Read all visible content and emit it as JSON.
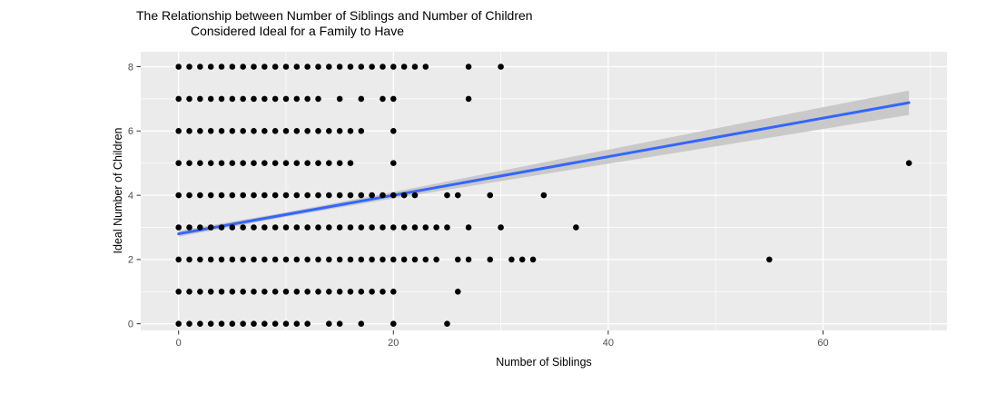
{
  "title": {
    "line1": "The Relationship between Number of Siblings and Number of Children",
    "line2": "Considered Ideal for a Family to Have"
  },
  "chart_data": {
    "type": "scatter",
    "xlabel": "Number of Siblings",
    "ylabel": "Ideal Number of Children",
    "x_ticks": [
      0,
      20,
      40,
      60
    ],
    "y_ticks": [
      0,
      2,
      4,
      6,
      8
    ],
    "x_minor_gridlines": [
      10,
      30,
      50,
      70
    ],
    "y_minor_gridlines": [
      1,
      3,
      5,
      7
    ],
    "xlim": [
      -3.5,
      71.5
    ],
    "ylim": [
      -0.25,
      8.45
    ],
    "grid": "on",
    "legend": "none",
    "series": [
      {
        "y": 8,
        "x": [
          0,
          1,
          2,
          3,
          4,
          5,
          6,
          7,
          8,
          9,
          10,
          11,
          12,
          13,
          14,
          15,
          16,
          17,
          18,
          19,
          20,
          21,
          22,
          23,
          27,
          30
        ]
      },
      {
        "y": 7,
        "x": [
          0,
          1,
          2,
          3,
          4,
          5,
          6,
          7,
          8,
          9,
          10,
          11,
          12,
          13,
          15,
          17,
          19,
          20,
          27
        ]
      },
      {
        "y": 6,
        "x": [
          0,
          1,
          2,
          3,
          4,
          5,
          6,
          7,
          8,
          9,
          10,
          11,
          12,
          13,
          14,
          15,
          16,
          17,
          20
        ]
      },
      {
        "y": 5,
        "x": [
          0,
          1,
          2,
          3,
          4,
          5,
          6,
          7,
          8,
          9,
          10,
          11,
          12,
          13,
          14,
          15,
          16,
          20,
          68
        ]
      },
      {
        "y": 4,
        "x": [
          0,
          1,
          2,
          3,
          4,
          5,
          6,
          7,
          8,
          9,
          10,
          11,
          12,
          13,
          14,
          15,
          16,
          17,
          18,
          19,
          20,
          21,
          22,
          25,
          26,
          29,
          34
        ]
      },
      {
        "y": 3,
        "x": [
          0,
          1,
          2,
          3,
          4,
          5,
          6,
          7,
          8,
          9,
          10,
          11,
          12,
          13,
          14,
          15,
          16,
          17,
          18,
          19,
          20,
          21,
          22,
          23,
          24,
          25,
          27,
          30,
          37
        ]
      },
      {
        "y": 2,
        "x": [
          0,
          1,
          2,
          3,
          4,
          5,
          6,
          7,
          8,
          9,
          10,
          11,
          12,
          13,
          14,
          15,
          16,
          17,
          18,
          19,
          20,
          21,
          22,
          23,
          24,
          26,
          27,
          29,
          31,
          32,
          33,
          55
        ]
      },
      {
        "y": 1,
        "x": [
          0,
          1,
          2,
          3,
          4,
          5,
          6,
          7,
          8,
          9,
          10,
          11,
          12,
          13,
          14,
          15,
          16,
          17,
          18,
          19,
          20,
          26
        ]
      },
      {
        "y": 0,
        "x": [
          0,
          1,
          2,
          3,
          4,
          5,
          6,
          7,
          8,
          9,
          10,
          11,
          12,
          14,
          15,
          17,
          20,
          25
        ]
      }
    ],
    "regression_line": {
      "x": [
        0,
        68
      ],
      "y": [
        2.8,
        6.88
      ]
    },
    "confidence_band": {
      "x": [
        0,
        10,
        20,
        30,
        40,
        50,
        60,
        68
      ],
      "upper": [
        2.89,
        3.47,
        4.1,
        4.76,
        5.42,
        6.08,
        6.74,
        7.26
      ],
      "lower": [
        2.71,
        3.33,
        3.9,
        4.44,
        4.98,
        5.52,
        6.06,
        6.5
      ]
    },
    "colors": {
      "panel_background": "#EBEBEB",
      "gridline": "#FFFFFF",
      "point": "#000000",
      "regression_line": "#3366FF",
      "confidence_band": "#C9C9C9",
      "tick_mark": "#333333",
      "tick_label": "#4D4D4D"
    }
  }
}
